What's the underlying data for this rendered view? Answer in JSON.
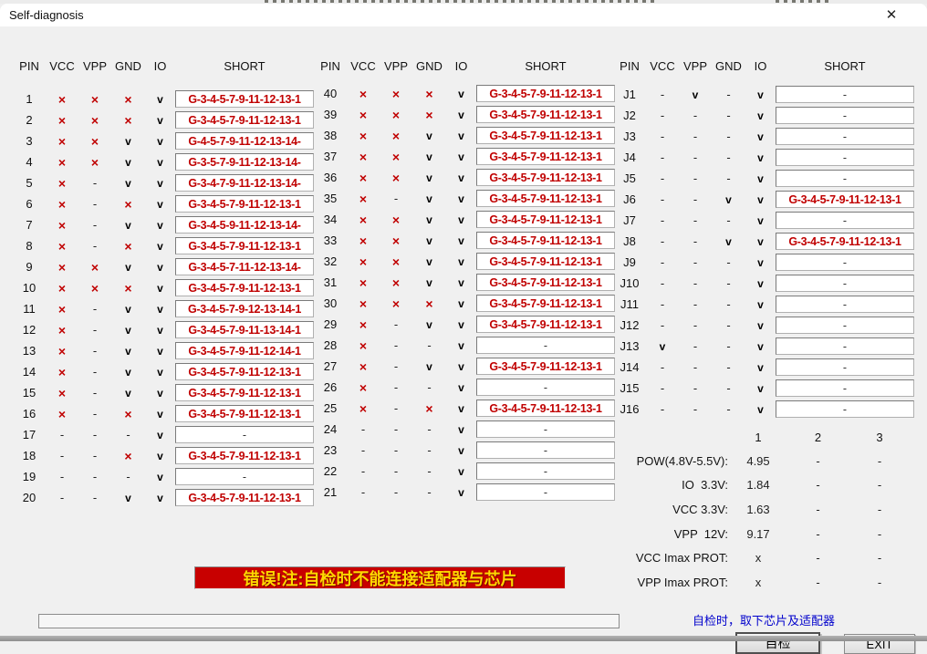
{
  "window": {
    "title": "Self-diagnosis",
    "close_glyph": "✕"
  },
  "table_headers": {
    "pin": "PIN",
    "vcc": "VCC",
    "vpp": "VPP",
    "gnd": "GND",
    "io": "IO",
    "short": "SHORT"
  },
  "marks": {
    "x": "×",
    "v": "v",
    "-": "-"
  },
  "groups": [
    {
      "rows": [
        {
          "pin": "1",
          "vcc": "x",
          "vpp": "x",
          "gnd": "x",
          "io": "v",
          "short": "G-3-4-5-7-9-11-12-13-1"
        },
        {
          "pin": "2",
          "vcc": "x",
          "vpp": "x",
          "gnd": "x",
          "io": "v",
          "short": "G-3-4-5-7-9-11-12-13-1"
        },
        {
          "pin": "3",
          "vcc": "x",
          "vpp": "x",
          "gnd": "v",
          "io": "v",
          "short": "G-4-5-7-9-11-12-13-14-"
        },
        {
          "pin": "4",
          "vcc": "x",
          "vpp": "x",
          "gnd": "v",
          "io": "v",
          "short": "G-3-5-7-9-11-12-13-14-"
        },
        {
          "pin": "5",
          "vcc": "x",
          "vpp": "-",
          "gnd": "v",
          "io": "v",
          "short": "G-3-4-7-9-11-12-13-14-"
        },
        {
          "pin": "6",
          "vcc": "x",
          "vpp": "-",
          "gnd": "x",
          "io": "v",
          "short": "G-3-4-5-7-9-11-12-13-1"
        },
        {
          "pin": "7",
          "vcc": "x",
          "vpp": "-",
          "gnd": "v",
          "io": "v",
          "short": "G-3-4-5-9-11-12-13-14-"
        },
        {
          "pin": "8",
          "vcc": "x",
          "vpp": "-",
          "gnd": "x",
          "io": "v",
          "short": "G-3-4-5-7-9-11-12-13-1"
        },
        {
          "pin": "9",
          "vcc": "x",
          "vpp": "x",
          "gnd": "v",
          "io": "v",
          "short": "G-3-4-5-7-11-12-13-14-"
        },
        {
          "pin": "10",
          "vcc": "x",
          "vpp": "x",
          "gnd": "x",
          "io": "v",
          "short": "G-3-4-5-7-9-11-12-13-1"
        },
        {
          "pin": "11",
          "vcc": "x",
          "vpp": "-",
          "gnd": "v",
          "io": "v",
          "short": "G-3-4-5-7-9-12-13-14-1"
        },
        {
          "pin": "12",
          "vcc": "x",
          "vpp": "-",
          "gnd": "v",
          "io": "v",
          "short": "G-3-4-5-7-9-11-13-14-1"
        },
        {
          "pin": "13",
          "vcc": "x",
          "vpp": "-",
          "gnd": "v",
          "io": "v",
          "short": "G-3-4-5-7-9-11-12-14-1"
        },
        {
          "pin": "14",
          "vcc": "x",
          "vpp": "-",
          "gnd": "v",
          "io": "v",
          "short": "G-3-4-5-7-9-11-12-13-1"
        },
        {
          "pin": "15",
          "vcc": "x",
          "vpp": "-",
          "gnd": "v",
          "io": "v",
          "short": "G-3-4-5-7-9-11-12-13-1"
        },
        {
          "pin": "16",
          "vcc": "x",
          "vpp": "-",
          "gnd": "x",
          "io": "v",
          "short": "G-3-4-5-7-9-11-12-13-1"
        },
        {
          "pin": "17",
          "vcc": "-",
          "vpp": "-",
          "gnd": "-",
          "io": "v",
          "short": "-"
        },
        {
          "pin": "18",
          "vcc": "-",
          "vpp": "-",
          "gnd": "x",
          "io": "v",
          "short": "G-3-4-5-7-9-11-12-13-1"
        },
        {
          "pin": "19",
          "vcc": "-",
          "vpp": "-",
          "gnd": "-",
          "io": "v",
          "short": "-"
        },
        {
          "pin": "20",
          "vcc": "-",
          "vpp": "-",
          "gnd": "v",
          "io": "v",
          "short": "G-3-4-5-7-9-11-12-13-1"
        }
      ]
    },
    {
      "rows": [
        {
          "pin": "40",
          "vcc": "x",
          "vpp": "x",
          "gnd": "x",
          "io": "v",
          "short": "G-3-4-5-7-9-11-12-13-1"
        },
        {
          "pin": "39",
          "vcc": "x",
          "vpp": "x",
          "gnd": "x",
          "io": "v",
          "short": "G-3-4-5-7-9-11-12-13-1"
        },
        {
          "pin": "38",
          "vcc": "x",
          "vpp": "x",
          "gnd": "v",
          "io": "v",
          "short": "G-3-4-5-7-9-11-12-13-1"
        },
        {
          "pin": "37",
          "vcc": "x",
          "vpp": "x",
          "gnd": "v",
          "io": "v",
          "short": "G-3-4-5-7-9-11-12-13-1"
        },
        {
          "pin": "36",
          "vcc": "x",
          "vpp": "x",
          "gnd": "v",
          "io": "v",
          "short": "G-3-4-5-7-9-11-12-13-1"
        },
        {
          "pin": "35",
          "vcc": "x",
          "vpp": "-",
          "gnd": "v",
          "io": "v",
          "short": "G-3-4-5-7-9-11-12-13-1"
        },
        {
          "pin": "34",
          "vcc": "x",
          "vpp": "x",
          "gnd": "v",
          "io": "v",
          "short": "G-3-4-5-7-9-11-12-13-1"
        },
        {
          "pin": "33",
          "vcc": "x",
          "vpp": "x",
          "gnd": "v",
          "io": "v",
          "short": "G-3-4-5-7-9-11-12-13-1"
        },
        {
          "pin": "32",
          "vcc": "x",
          "vpp": "x",
          "gnd": "v",
          "io": "v",
          "short": "G-3-4-5-7-9-11-12-13-1"
        },
        {
          "pin": "31",
          "vcc": "x",
          "vpp": "x",
          "gnd": "v",
          "io": "v",
          "short": "G-3-4-5-7-9-11-12-13-1"
        },
        {
          "pin": "30",
          "vcc": "x",
          "vpp": "x",
          "gnd": "x",
          "io": "v",
          "short": "G-3-4-5-7-9-11-12-13-1"
        },
        {
          "pin": "29",
          "vcc": "x",
          "vpp": "-",
          "gnd": "v",
          "io": "v",
          "short": "G-3-4-5-7-9-11-12-13-1"
        },
        {
          "pin": "28",
          "vcc": "x",
          "vpp": "-",
          "gnd": "-",
          "io": "v",
          "short": "-"
        },
        {
          "pin": "27",
          "vcc": "x",
          "vpp": "-",
          "gnd": "v",
          "io": "v",
          "short": "G-3-4-5-7-9-11-12-13-1"
        },
        {
          "pin": "26",
          "vcc": "x",
          "vpp": "-",
          "gnd": "-",
          "io": "v",
          "short": "-"
        },
        {
          "pin": "25",
          "vcc": "x",
          "vpp": "-",
          "gnd": "x",
          "io": "v",
          "short": "G-3-4-5-7-9-11-12-13-1"
        },
        {
          "pin": "24",
          "vcc": "-",
          "vpp": "-",
          "gnd": "-",
          "io": "v",
          "short": "-"
        },
        {
          "pin": "23",
          "vcc": "-",
          "vpp": "-",
          "gnd": "-",
          "io": "v",
          "short": "-"
        },
        {
          "pin": "22",
          "vcc": "-",
          "vpp": "-",
          "gnd": "-",
          "io": "v",
          "short": "-"
        },
        {
          "pin": "21",
          "vcc": "-",
          "vpp": "-",
          "gnd": "-",
          "io": "v",
          "short": "-"
        }
      ]
    },
    {
      "rows": [
        {
          "pin": "J1",
          "vcc": "-",
          "vpp": "v",
          "gnd": "-",
          "io": "v",
          "short": "-"
        },
        {
          "pin": "J2",
          "vcc": "-",
          "vpp": "-",
          "gnd": "-",
          "io": "v",
          "short": "-"
        },
        {
          "pin": "J3",
          "vcc": "-",
          "vpp": "-",
          "gnd": "-",
          "io": "v",
          "short": "-"
        },
        {
          "pin": "J4",
          "vcc": "-",
          "vpp": "-",
          "gnd": "-",
          "io": "v",
          "short": "-"
        },
        {
          "pin": "J5",
          "vcc": "-",
          "vpp": "-",
          "gnd": "-",
          "io": "v",
          "short": "-"
        },
        {
          "pin": "J6",
          "vcc": "-",
          "vpp": "-",
          "gnd": "v",
          "io": "v",
          "short": "G-3-4-5-7-9-11-12-13-1"
        },
        {
          "pin": "J7",
          "vcc": "-",
          "vpp": "-",
          "gnd": "-",
          "io": "v",
          "short": "-"
        },
        {
          "pin": "J8",
          "vcc": "-",
          "vpp": "-",
          "gnd": "v",
          "io": "v",
          "short": "G-3-4-5-7-9-11-12-13-1"
        },
        {
          "pin": "J9",
          "vcc": "-",
          "vpp": "-",
          "gnd": "-",
          "io": "v",
          "short": "-"
        },
        {
          "pin": "J10",
          "vcc": "-",
          "vpp": "-",
          "gnd": "-",
          "io": "v",
          "short": "-"
        },
        {
          "pin": "J11",
          "vcc": "-",
          "vpp": "-",
          "gnd": "-",
          "io": "v",
          "short": "-"
        },
        {
          "pin": "J12",
          "vcc": "-",
          "vpp": "-",
          "gnd": "-",
          "io": "v",
          "short": "-"
        },
        {
          "pin": "J13",
          "vcc": "v",
          "vpp": "-",
          "gnd": "-",
          "io": "v",
          "short": "-"
        },
        {
          "pin": "J14",
          "vcc": "-",
          "vpp": "-",
          "gnd": "-",
          "io": "v",
          "short": "-"
        },
        {
          "pin": "J15",
          "vcc": "-",
          "vpp": "-",
          "gnd": "-",
          "io": "v",
          "short": "-"
        },
        {
          "pin": "J16",
          "vcc": "-",
          "vpp": "-",
          "gnd": "-",
          "io": "v",
          "short": "-"
        }
      ]
    }
  ],
  "voltage": {
    "col_headers": [
      "1",
      "2",
      "3"
    ],
    "rows": [
      {
        "label": "POW(4.8V-5.5V):",
        "v1": "4.95",
        "v2": "-",
        "v3": "-"
      },
      {
        "label": "IO  3.3V:",
        "v1": "1.84",
        "v2": "-",
        "v3": "-"
      },
      {
        "label": "VCC 3.3V:",
        "v1": "1.63",
        "v2": "-",
        "v3": "-"
      },
      {
        "label": "VPP  12V:",
        "v1": "9.17",
        "v2": "-",
        "v3": "-"
      },
      {
        "label": "VCC Imax PROT:",
        "v1": "x",
        "v2": "-",
        "v3": "-"
      },
      {
        "label": "VPP Imax PROT:",
        "v1": "x",
        "v2": "-",
        "v3": "-"
      }
    ]
  },
  "error_banner": "错误!注:自检时不能连接适配器与芯片",
  "hint": "自检时，取下芯片及适配器",
  "buttons": {
    "self_test": "自检",
    "exit": "EXIT"
  },
  "colors": {
    "error_bg": "#c80000",
    "error_text": "#ffd800",
    "fail_mark": "#c00000",
    "short_text": "#c00000",
    "hint_text": "#0000cc"
  }
}
